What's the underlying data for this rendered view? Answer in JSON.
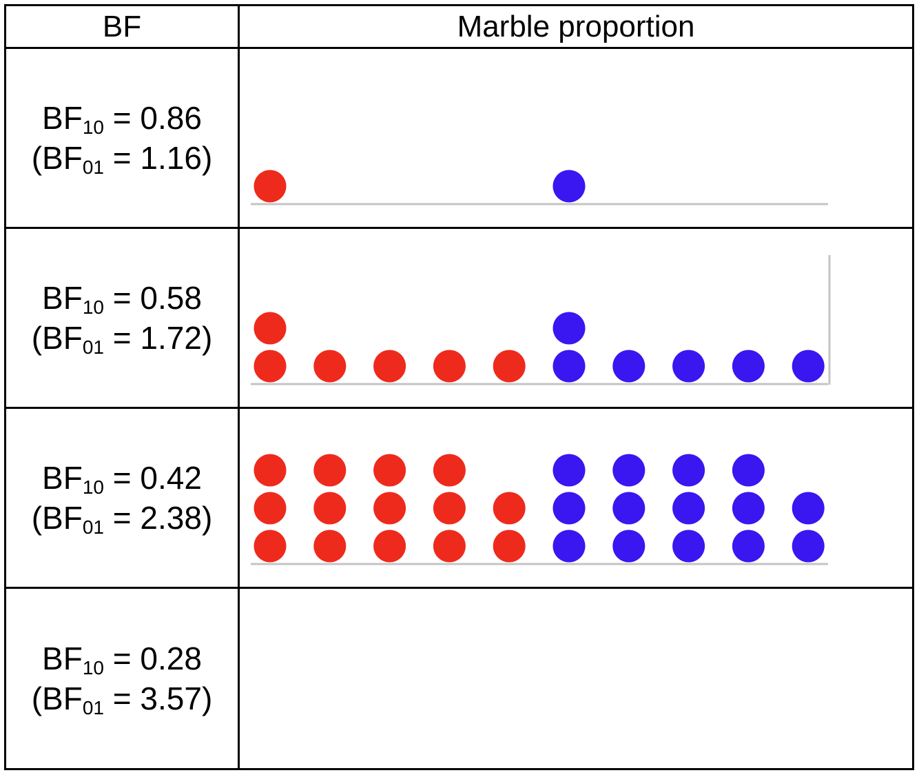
{
  "header": {
    "bf_label": "BF",
    "marble_label": "Marble proportion"
  },
  "rows": [
    {
      "bf10_prefix": "BF",
      "bf10_sub": "10",
      "bf10_value": "= 0.86",
      "bf01_prefix": "(BF",
      "bf01_sub": "01",
      "bf01_value": "= 1.16)",
      "marbles": {
        "red": [
          1,
          0,
          0,
          0,
          0
        ],
        "blue": [
          1,
          0,
          0,
          0,
          0
        ]
      },
      "right_wall": false
    },
    {
      "bf10_prefix": "BF",
      "bf10_sub": "10",
      "bf10_value": "= 0.58",
      "bf01_prefix": "(BF",
      "bf01_sub": "01",
      "bf01_value": "= 1.72)",
      "marbles": {
        "red": [
          2,
          1,
          1,
          1,
          1
        ],
        "blue": [
          2,
          1,
          1,
          1,
          1
        ]
      },
      "right_wall": true
    },
    {
      "bf10_prefix": "BF",
      "bf10_sub": "10",
      "bf10_value": "= 0.42",
      "bf01_prefix": "(BF",
      "bf01_sub": "01",
      "bf01_value": "= 2.38)",
      "marbles": {
        "red": [
          3,
          3,
          3,
          3,
          2
        ],
        "blue": [
          3,
          3,
          3,
          3,
          2
        ]
      },
      "right_wall": false
    },
    {
      "bf10_prefix": "BF",
      "bf10_sub": "10",
      "bf10_value": "= 0.28",
      "bf01_prefix": "(BF",
      "bf01_sub": "01",
      "bf01_value": "= 3.57)",
      "marbles": {
        "red": [
          0,
          0,
          0,
          0,
          0
        ],
        "blue": [
          0,
          0,
          0,
          0,
          0
        ]
      },
      "right_wall": false
    }
  ],
  "colors": {
    "red": "#ee2a1c",
    "blue": "#3a16f0",
    "floor": "#c4c4c4"
  }
}
